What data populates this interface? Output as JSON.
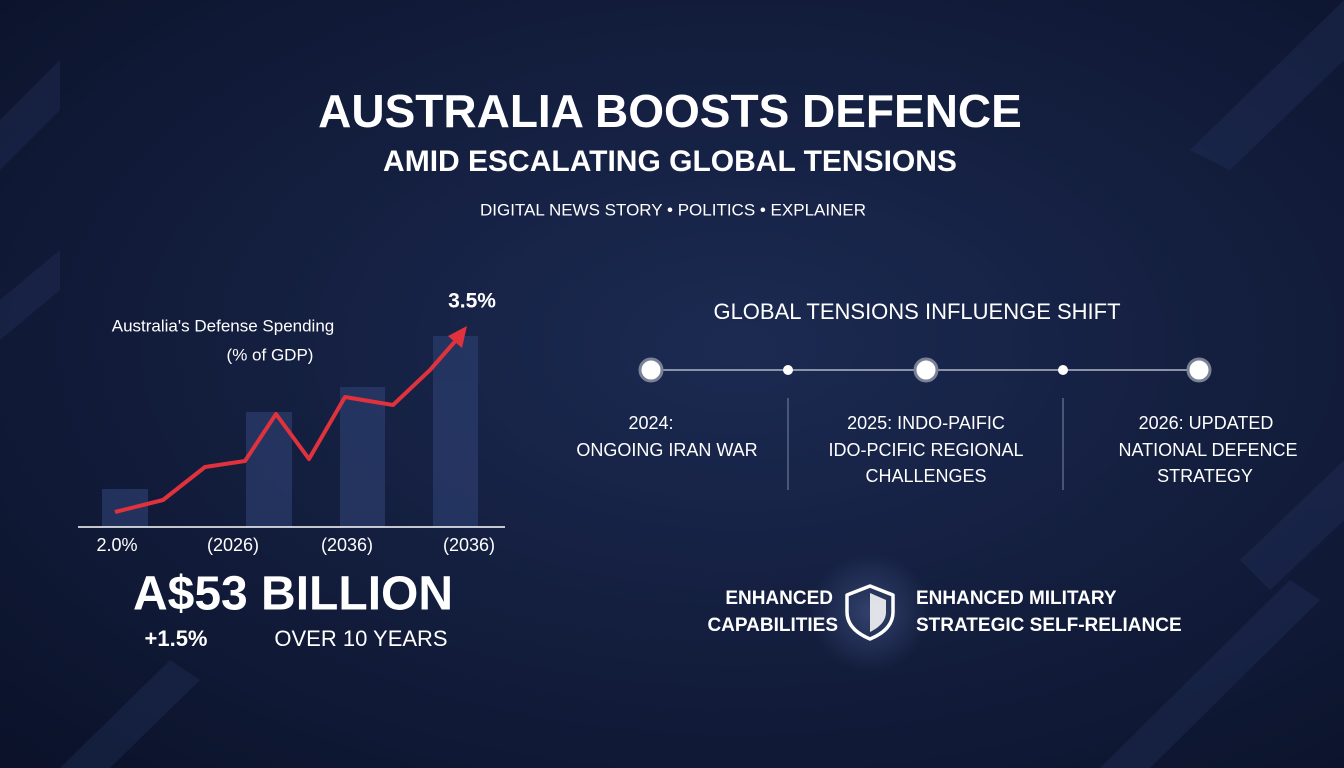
{
  "header": {
    "title": "AUSTRALIA BOOSTS DEFENCE",
    "subtitle": "AMID ESCALATING GLOBAL TENSIONS",
    "tagline": "DIGITAL NEWS STORY • POLITICS • EXPLAINER"
  },
  "spending": {
    "title_lines": [
      "Australia's Defense Spending",
      "(% of GDP)"
    ],
    "peak_label": "3.5%",
    "axis_labels": [
      "2.0%",
      "(2026)",
      "(2036)",
      "(2036)"
    ],
    "amount": "A$53 BILLION",
    "change": "+1.5%",
    "period": "OVER 10 YEARS"
  },
  "timeline": {
    "title": "GLOBAL TENSIONS INFLUENGE SHIFT",
    "events": [
      {
        "lines": [
          "2024:",
          "ONGOING IRAN WAR"
        ]
      },
      {
        "lines": [
          "2025: INDO-PAIFIC",
          "IDO-PCIFIC REGIONAL",
          "CHALLENGES"
        ]
      },
      {
        "lines": [
          "2026: UPDATED",
          "NATIONAL DEFENCE",
          "STRATEGY"
        ]
      }
    ]
  },
  "outcome": {
    "left": [
      "ENHANCED",
      "CAPABILITIES"
    ],
    "right": [
      "ENHANCED MILITARY",
      "STRATEGIC SELF-RELIANCE"
    ]
  }
}
